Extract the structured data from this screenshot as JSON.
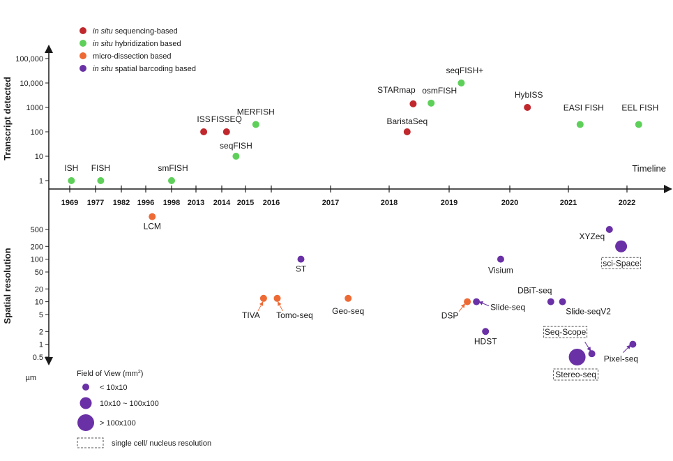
{
  "chart_data": {
    "type": "scatter",
    "timeline": {
      "label": "Timeline",
      "years": [
        "1969",
        "1977",
        "1982",
        "1996",
        "1998",
        "2013",
        "2014",
        "2015",
        "2016",
        "2017",
        "2018",
        "2019",
        "2020",
        "2021",
        "2022"
      ]
    },
    "top_panel": {
      "ylabel": "Transcript detected",
      "yscale": "log",
      "yticks": [
        "100,000",
        "10,000",
        "1000",
        "100",
        "10",
        "1"
      ],
      "ytick_values": [
        100000,
        10000,
        1000,
        100,
        10,
        1
      ],
      "points": [
        {
          "name": "ISH",
          "year": 1969.5,
          "value": 1,
          "category": "hybridization"
        },
        {
          "name": "FISH",
          "year": 1978,
          "value": 1,
          "category": "hybridization"
        },
        {
          "name": "smFISH",
          "year": 1998,
          "value": 1,
          "category": "hybridization"
        },
        {
          "name": "ISS",
          "year": 2013.3,
          "value": 100,
          "category": "sequencing"
        },
        {
          "name": "FISSEQ",
          "year": 2014.2,
          "value": 100,
          "category": "sequencing"
        },
        {
          "name": "seqFISH",
          "year": 2014.6,
          "value": 10,
          "category": "hybridization"
        },
        {
          "name": "MERFISH",
          "year": 2015.4,
          "value": 200,
          "category": "hybridization"
        },
        {
          "name": "BaristaSeq",
          "year": 2018.3,
          "value": 100,
          "category": "sequencing"
        },
        {
          "name": "STARmap",
          "year": 2018.4,
          "value": 1400,
          "category": "sequencing"
        },
        {
          "name": "osmFISH",
          "year": 2018.7,
          "value": 1500,
          "category": "hybridization"
        },
        {
          "name": "seqFISH+",
          "year": 2019.2,
          "value": 10000,
          "category": "hybridization"
        },
        {
          "name": "HybISS",
          "year": 2020.3,
          "value": 1000,
          "category": "sequencing"
        },
        {
          "name": "EASI FISH",
          "year": 2021.2,
          "value": 200,
          "category": "hybridization"
        },
        {
          "name": "EEL FISH",
          "year": 2022.2,
          "value": 200,
          "category": "hybridization"
        }
      ]
    },
    "bottom_panel": {
      "ylabel": "Spatial resolution",
      "unit": "µm",
      "yscale": "log",
      "yticks": [
        "500",
        "200",
        "100",
        "50",
        "20",
        "10",
        "5",
        "2",
        "1",
        "0.5"
      ],
      "ytick_values": [
        500,
        200,
        100,
        50,
        20,
        10,
        5,
        2,
        1,
        0.5
      ],
      "points": [
        {
          "name": "LCM",
          "year": 1996.5,
          "value": 1000,
          "category": "microdissection",
          "size": "small"
        },
        {
          "name": "ST",
          "year": 2016.5,
          "value": 100,
          "category": "barcoding",
          "size": "small"
        },
        {
          "name": "TIVA",
          "year": 2015.7,
          "value": 12,
          "category": "microdissection",
          "size": "small"
        },
        {
          "name": "Tomo-seq",
          "year": 2016.1,
          "value": 12,
          "category": "microdissection",
          "size": "small"
        },
        {
          "name": "Geo-seq",
          "year": 2017.3,
          "value": 12,
          "category": "microdissection",
          "size": "small"
        },
        {
          "name": "DSP",
          "year": 2019.3,
          "value": 10,
          "category": "microdissection",
          "size": "small"
        },
        {
          "name": "Slide-seq",
          "year": 2019.45,
          "value": 10,
          "category": "barcoding",
          "size": "small"
        },
        {
          "name": "HDST",
          "year": 2019.6,
          "value": 2,
          "category": "barcoding",
          "size": "small"
        },
        {
          "name": "Visium",
          "year": 2019.85,
          "value": 100,
          "category": "barcoding",
          "size": "small"
        },
        {
          "name": "DBiT-seq",
          "year": 2020.7,
          "value": 10,
          "category": "barcoding",
          "size": "small"
        },
        {
          "name": "Slide-seqV2",
          "year": 2020.9,
          "value": 10,
          "category": "barcoding",
          "size": "small"
        },
        {
          "name": "XYZeq",
          "year": 2021.7,
          "value": 500,
          "category": "barcoding",
          "size": "small"
        },
        {
          "name": "sci-Space",
          "year": 2021.9,
          "value": 200,
          "category": "barcoding",
          "size": "medium",
          "single_cell": true
        },
        {
          "name": "Seq-Scope",
          "year": 2021.4,
          "value": 0.6,
          "category": "barcoding",
          "size": "small",
          "single_cell": true
        },
        {
          "name": "Stereo-seq",
          "year": 2021.15,
          "value": 0.5,
          "category": "barcoding",
          "size": "large",
          "single_cell": true
        },
        {
          "name": "Pixel-seq",
          "year": 2022.1,
          "value": 1,
          "category": "barcoding",
          "size": "small"
        }
      ]
    },
    "legend": {
      "placement": "top-left",
      "categories": [
        {
          "key": "sequencing",
          "italic": "in situ",
          "text": " sequencing-based",
          "color": "#c0282d"
        },
        {
          "key": "hybridization",
          "italic": "in situ",
          "text": " hybridization based",
          "color": "#5ed05a"
        },
        {
          "key": "microdissection",
          "italic": "",
          "text": "micro-dissection based",
          "color": "#ee6a35"
        },
        {
          "key": "barcoding",
          "italic": "in situ",
          "text": " spatial barcoding based",
          "color": "#6a31a6"
        }
      ]
    },
    "fov_legend": {
      "title": "Field of View (mm",
      "title_sup": "2",
      "title_end": ")",
      "sizes": [
        {
          "key": "small",
          "label": "< 10x10"
        },
        {
          "key": "medium",
          "label": "10x10 ~ 100x100"
        },
        {
          "key": "large",
          "label": "> 100x100"
        }
      ],
      "single_cell_label": "single cell/ nucleus resolution"
    }
  }
}
